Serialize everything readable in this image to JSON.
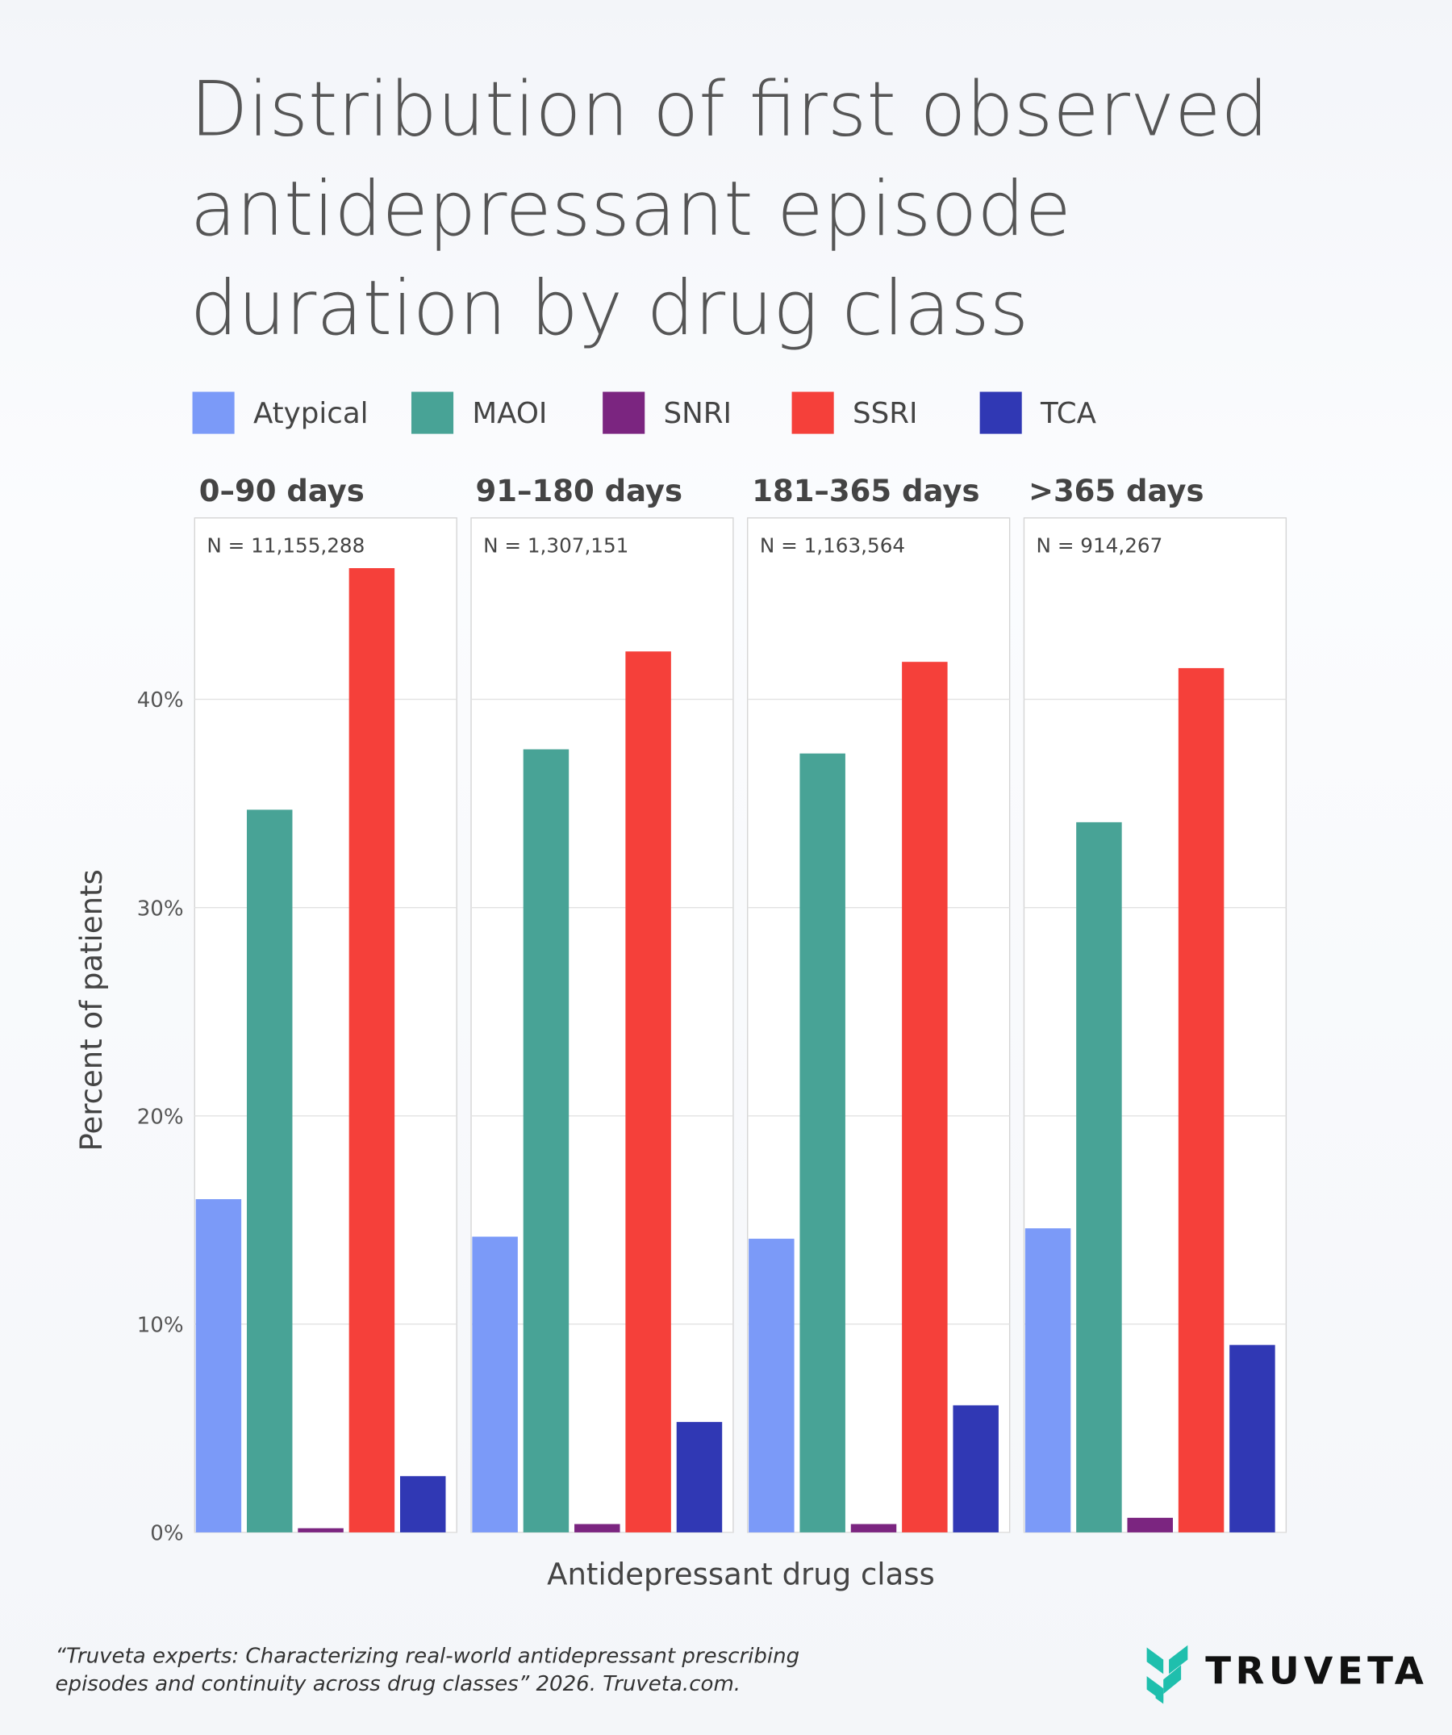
{
  "chart_data": {
    "type": "bar",
    "title_lines": [
      "Distribution of first observed",
      "antidepressant episode",
      "duration by drug class"
    ],
    "xlabel": "Antidepressant drug class",
    "ylabel": "Percent of patients",
    "ylim": [
      0,
      48
    ],
    "yticks": [
      0,
      10,
      20,
      30,
      40
    ],
    "ytick_labels": [
      "0%",
      "10%",
      "20%",
      "30%",
      "40%"
    ],
    "grid": true,
    "legend_position": "top",
    "categories": [
      "Atypical",
      "MAOI",
      "SNRI",
      "SSRI",
      "TCA"
    ],
    "colors": {
      "Atypical": "#7b9af8",
      "MAOI": "#48a396",
      "SNRI": "#7b2580",
      "SSRI": "#f5403a",
      "TCA": "#3038b4"
    },
    "facets": [
      {
        "label": "0–90 days",
        "n_label": "N = 11,155,288",
        "values": [
          16.0,
          34.7,
          0.2,
          46.3,
          2.7
        ]
      },
      {
        "label": "91–180 days",
        "n_label": "N = 1,307,151",
        "values": [
          14.2,
          37.6,
          0.4,
          42.3,
          5.3
        ]
      },
      {
        "label": "181–365 days",
        "n_label": "N = 1,163,564",
        "values": [
          14.1,
          37.4,
          0.4,
          41.8,
          6.1
        ]
      },
      {
        "label": ">365 days",
        "n_label": "N = 914,267",
        "values": [
          14.6,
          34.1,
          0.7,
          41.5,
          9.0
        ]
      }
    ]
  },
  "footer": {
    "citation_lines": [
      "“Truveta experts: Characterizing real-world antidepressant prescribing",
      "episodes and continuity across drug classes” 2026. Truveta.com."
    ],
    "brand": "TRUVETA",
    "brand_color": "#1fbfad"
  }
}
